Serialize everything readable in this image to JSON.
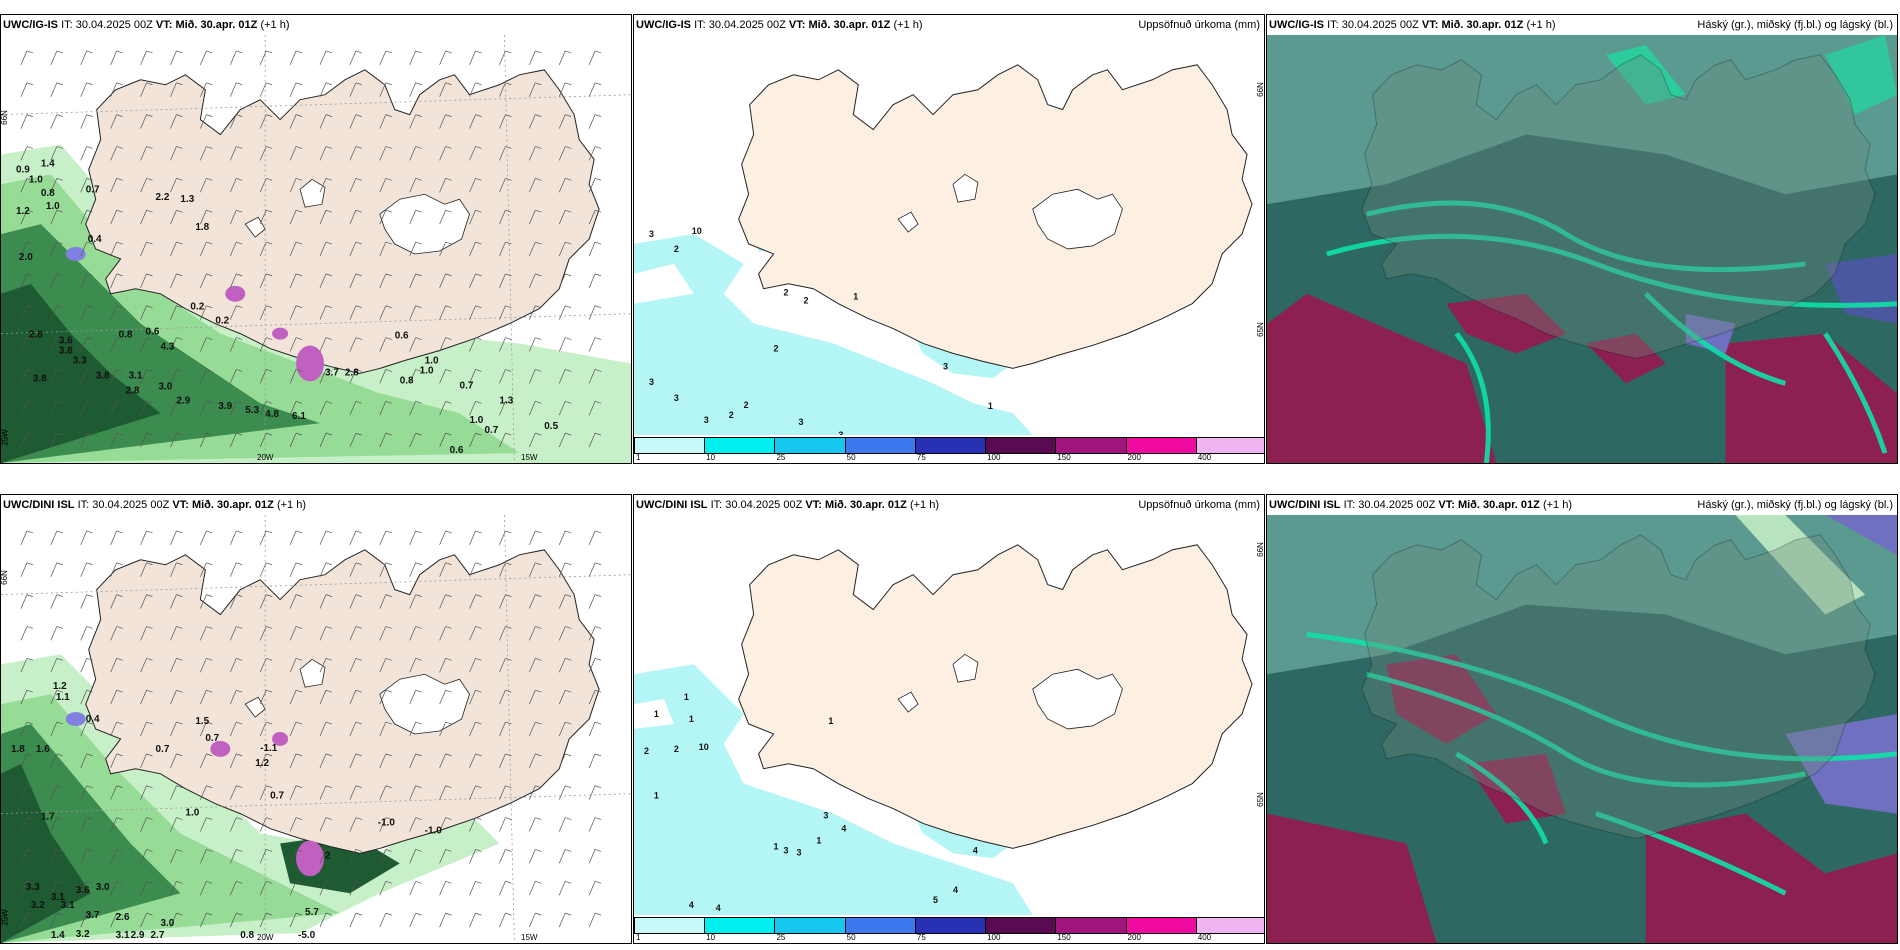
{
  "panels": {
    "p1": {
      "model": "UWC/IG-IS",
      "it_label": "IT:",
      "it": "30.04.2025 00Z",
      "vt_label": "VT:",
      "vt": "Mið. 30.apr. 01Z",
      "lead": "(+1 h)",
      "right": ""
    },
    "p2": {
      "model": "UWC/IG-IS",
      "it_label": "IT:",
      "it": "30.04.2025 00Z",
      "vt_label": "VT:",
      "vt": "Mið. 30.apr. 01Z",
      "lead": "(+1 h)",
      "right": "Uppsöfnuð úrkoma (mm)"
    },
    "p3": {
      "model": "UWC/IG-IS",
      "it_label": "IT:",
      "it": "30.04.2025 00Z",
      "vt_label": "VT:",
      "vt": "Mið. 30.apr. 01Z",
      "lead": "(+1 h)",
      "right": "Háský (gr.), miðský (fj.bl.) og lágský (bl.)"
    },
    "p4": {
      "model": "UWC/DINI ISL",
      "it_label": "IT:",
      "it": "30.04.2025 00Z",
      "vt_label": "VT:",
      "vt": "Mið. 30.apr. 01Z",
      "lead": "(+1 h)",
      "right": ""
    },
    "p5": {
      "model": "UWC/DINI ISL",
      "it_label": "IT:",
      "it": "30.04.2025 00Z",
      "vt_label": "VT:",
      "vt": "Mið. 30.apr. 01Z",
      "lead": "(+1 h)",
      "right": "Uppsöfnuð úrkoma (mm)"
    },
    "p6": {
      "model": "UWC/DINI ISL",
      "it_label": "IT:",
      "it": "30.04.2025 00Z",
      "vt_label": "VT:",
      "vt": "Mið. 30.apr. 01Z",
      "lead": "(+1 h)",
      "right": "Háský (gr.), miðský (fj.bl.) og lágský (bl.)"
    }
  },
  "axes": {
    "lat66": "66N",
    "lon25": "25W",
    "lon20": "20W",
    "lon15": "15W",
    "lat65": "65N"
  },
  "colorbar": {
    "labels": [
      "1",
      "10",
      "25",
      "50",
      "75",
      "100",
      "150",
      "200",
      "400"
    ],
    "colors": [
      "#c8fafa",
      "#00f0f0",
      "#14c8f0",
      "#3c78f0",
      "#2830b4",
      "#5a0a50",
      "#a0147e",
      "#f00aa0",
      "#f0b4f0"
    ]
  },
  "precip_labels": {
    "p1": [
      {
        "t": "0.9"
      },
      {
        "t": "1.4"
      },
      {
        "t": "1.0"
      },
      {
        "t": "0.8"
      },
      {
        "t": "0.7"
      },
      {
        "t": "1.0"
      },
      {
        "t": "1.2"
      },
      {
        "t": "2.2"
      },
      {
        "t": "1.3"
      },
      {
        "t": "1.8"
      },
      {
        "t": "0.4"
      },
      {
        "t": "2.0"
      },
      {
        "t": "0.2"
      },
      {
        "t": "0.2"
      },
      {
        "t": "2.8"
      },
      {
        "t": "3.6"
      },
      {
        "t": "3.8"
      },
      {
        "t": "3.3"
      },
      {
        "t": "0.8"
      },
      {
        "t": "0.6"
      },
      {
        "t": "4.3"
      },
      {
        "t": "3.8"
      },
      {
        "t": "3.8"
      },
      {
        "t": "3.1"
      },
      {
        "t": "2.8"
      },
      {
        "t": "3.0"
      },
      {
        "t": "2.9"
      },
      {
        "t": "3.9"
      },
      {
        "t": "5.3"
      },
      {
        "t": "4.8"
      },
      {
        "t": "6.1"
      },
      {
        "t": "0.6"
      },
      {
        "t": "1.0"
      },
      {
        "t": "0.7"
      },
      {
        "t": "0.8"
      },
      {
        "t": "1.3"
      },
      {
        "t": "1.0"
      },
      {
        "t": "0.7"
      },
      {
        "t": "0.5"
      },
      {
        "t": "0.6"
      },
      {
        "t": "1.0"
      },
      {
        "t": "3.7"
      },
      {
        "t": "2.8"
      }
    ],
    "p2": [
      {
        "t": "3"
      },
      {
        "t": "2"
      },
      {
        "t": "10"
      },
      {
        "t": "2"
      },
      {
        "t": "2"
      },
      {
        "t": "1"
      },
      {
        "t": "2"
      },
      {
        "t": "3"
      },
      {
        "t": "3"
      },
      {
        "t": "3"
      },
      {
        "t": "2"
      },
      {
        "t": "2"
      },
      {
        "t": "3"
      },
      {
        "t": "3"
      },
      {
        "t": "4"
      },
      {
        "t": "2"
      },
      {
        "t": "1"
      },
      {
        "t": "3"
      }
    ],
    "p4": [
      {
        "t": "1.2"
      },
      {
        "t": "1.1"
      },
      {
        "t": "1.8"
      },
      {
        "t": "1.6"
      },
      {
        "t": "0.4"
      },
      {
        "t": "0.7"
      },
      {
        "t": "1.5"
      },
      {
        "t": "0.7"
      },
      {
        "t": "-1.1"
      },
      {
        "t": "1.2"
      },
      {
        "t": "1.7"
      },
      {
        "t": "1.0"
      },
      {
        "t": "0.7"
      },
      {
        "t": "-1.0"
      },
      {
        "t": "-1.0"
      },
      {
        "t": "3.3"
      },
      {
        "t": "3.1"
      },
      {
        "t": "3.6"
      },
      {
        "t": "3.0"
      },
      {
        "t": "3.2"
      },
      {
        "t": "3.1"
      },
      {
        "t": "3.7"
      },
      {
        "t": "2.6"
      },
      {
        "t": "3.2"
      },
      {
        "t": "3.0"
      },
      {
        "t": "3.1"
      },
      {
        "t": "2.7"
      },
      {
        "t": "2.9"
      },
      {
        "t": "1.4"
      },
      {
        "t": "0.8"
      },
      {
        "t": "-5.0"
      },
      {
        "t": "5.7"
      },
      {
        "t": "2"
      }
    ],
    "p5": [
      {
        "t": "1"
      },
      {
        "t": "1"
      },
      {
        "t": "1"
      },
      {
        "t": "2"
      },
      {
        "t": "2"
      },
      {
        "t": "10"
      },
      {
        "t": "1"
      },
      {
        "t": "1"
      },
      {
        "t": "3"
      },
      {
        "t": "4"
      },
      {
        "t": "1"
      },
      {
        "t": "1"
      },
      {
        "t": "3"
      },
      {
        "t": "3"
      },
      {
        "t": "4"
      },
      {
        "t": "4"
      },
      {
        "t": "3"
      },
      {
        "t": "3"
      },
      {
        "t": "3"
      },
      {
        "t": "3"
      },
      {
        "t": "4"
      },
      {
        "t": "4"
      },
      {
        "t": "5"
      }
    ]
  }
}
